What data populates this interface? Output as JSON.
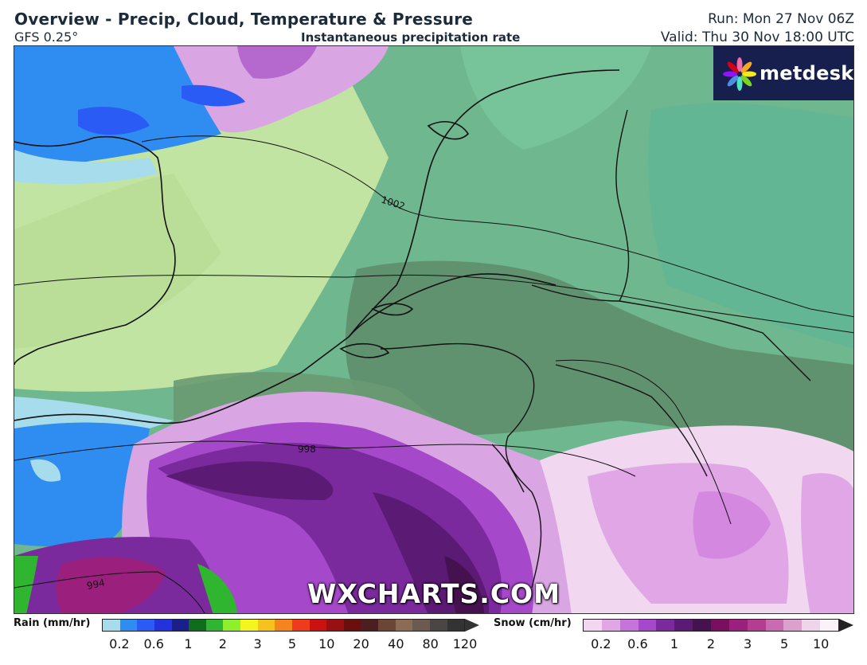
{
  "header": {
    "title": "Overview - Precip, Cloud, Temperature & Pressure",
    "model": "GFS 0.25°",
    "subtitle": "Instantaneous precipitation rate",
    "run": "Run: Mon 27 Nov 06Z",
    "valid": "Valid: Thu 30 Nov 18:00 UTC"
  },
  "logo": {
    "text": "metdesk",
    "icon": "metdesk-flower-icon"
  },
  "watermark": "WXCHARTS.COM",
  "isobars": [
    "1002",
    "998",
    "994"
  ],
  "legend": {
    "rain": {
      "title": "Rain (mm/hr)",
      "ticks": [
        "0.2",
        "0.6",
        "1",
        "2",
        "3",
        "5",
        "10",
        "20",
        "40",
        "80",
        "120"
      ],
      "colors": [
        "#a6dcec",
        "#2f8cf0",
        "#2a5cf5",
        "#2233dd",
        "#1a1f8a",
        "#0e6e1e",
        "#2fb52f",
        "#8ef02a",
        "#f5f51e",
        "#f5c21e",
        "#f5841e",
        "#ef3a1e",
        "#cc1111",
        "#991010",
        "#6b0e0e",
        "#4b1f1f",
        "#6b4535",
        "#8c6b55",
        "#6b5a50",
        "#4b4545",
        "#333333"
      ]
    },
    "snow": {
      "title": "Snow (cm/hr)",
      "ticks": [
        "0.2",
        "0.6",
        "1",
        "2",
        "3",
        "5",
        "10"
      ],
      "colors": [
        "#f1d8f0",
        "#e0a6e6",
        "#c673db",
        "#a548c9",
        "#7b2a9e",
        "#5b1a73",
        "#46114f",
        "#7a0f5e",
        "#9b1f7c",
        "#b43d93",
        "#c86bb0",
        "#dca0cd",
        "#efd5ea",
        "#fbf1f8"
      ]
    }
  }
}
